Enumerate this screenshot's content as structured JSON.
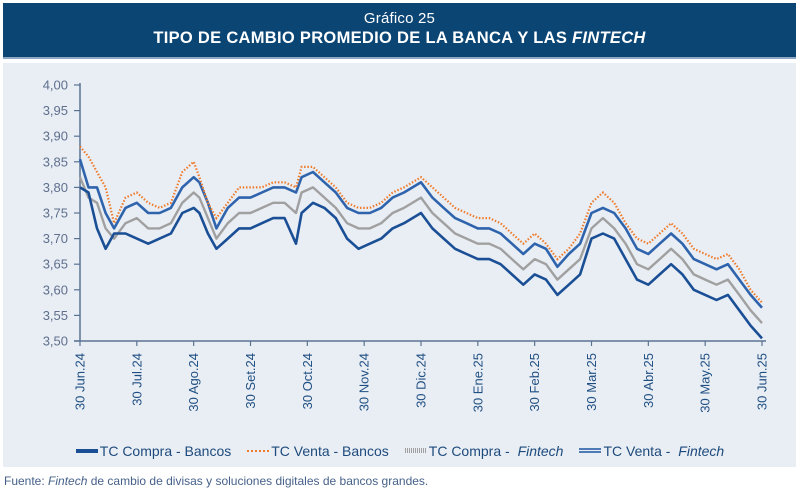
{
  "header": {
    "subtitle": "Gráfico 25",
    "title_main": "TIPO DE CAMBIO PROMEDIO DE LA BANCA Y LAS ",
    "title_italic": "FINTECH"
  },
  "footer": {
    "prefix": "Fuente: ",
    "italic": "Fintech",
    "rest": " de cambio de divisas y soluciones digitales de bancos grandes."
  },
  "legend": [
    {
      "label": "TC Compra - Bancos",
      "italic": ""
    },
    {
      "label": "TC Venta - Bancos",
      "italic": ""
    },
    {
      "label": "TC Compra - ",
      "italic": "Fintech"
    },
    {
      "label": "TC Venta - ",
      "italic": "Fintech"
    }
  ],
  "colors": {
    "header_bg": "#0b4574",
    "panel_bg": "#e9eef5",
    "compra_bancos": "#1b4f95",
    "venta_bancos": "#ef7b2a",
    "compra_fintech": "#a0a0a0",
    "venta_fintech": "#2f64ad",
    "axis": "#5a7394"
  },
  "chart_data": {
    "type": "line",
    "title": "TIPO DE CAMBIO PROMEDIO DE LA BANCA Y LAS FINTECH",
    "xlabel": "",
    "ylabel": "",
    "ylim": [
      3.5,
      4.0
    ],
    "yticks": [
      "3,50",
      "3,55",
      "3,60",
      "3,65",
      "3,70",
      "3,75",
      "3,80",
      "3,85",
      "3,90",
      "3,95",
      "4,00"
    ],
    "ytick_values": [
      3.5,
      3.55,
      3.6,
      3.65,
      3.7,
      3.75,
      3.8,
      3.85,
      3.9,
      3.95,
      4.0
    ],
    "xticks": [
      "30 Jun.24",
      "30 Jul.24",
      "30 Ago.24",
      "30 Set.24",
      "30 Oct.24",
      "30 Nov.24",
      "30 Dic.24",
      "30 Ene.25",
      "30 Feb.25",
      "30 Mar.25",
      "30 Abr.25",
      "30 May.25",
      "30 Jun.25"
    ],
    "x_range_months": [
      0,
      12
    ],
    "grid": false,
    "legend_position": "bottom",
    "x": [
      0,
      0.15,
      0.3,
      0.45,
      0.6,
      0.8,
      1.0,
      1.2,
      1.4,
      1.6,
      1.8,
      2.0,
      2.1,
      2.25,
      2.4,
      2.6,
      2.8,
      3.0,
      3.2,
      3.4,
      3.6,
      3.8,
      3.9,
      4.1,
      4.3,
      4.5,
      4.7,
      4.9,
      5.1,
      5.3,
      5.5,
      5.7,
      6.0,
      6.2,
      6.4,
      6.6,
      6.8,
      7.0,
      7.2,
      7.4,
      7.6,
      7.8,
      8.0,
      8.2,
      8.4,
      8.6,
      8.8,
      9.0,
      9.2,
      9.4,
      9.6,
      9.8,
      10.0,
      10.2,
      10.4,
      10.6,
      10.8,
      11.0,
      11.2,
      11.4,
      11.6,
      11.8,
      12.0
    ],
    "series": [
      {
        "name": "TC Compra - Bancos",
        "values": [
          3.8,
          3.79,
          3.72,
          3.68,
          3.71,
          3.71,
          3.7,
          3.69,
          3.7,
          3.71,
          3.75,
          3.76,
          3.75,
          3.71,
          3.68,
          3.7,
          3.72,
          3.72,
          3.73,
          3.74,
          3.74,
          3.69,
          3.75,
          3.77,
          3.76,
          3.74,
          3.7,
          3.68,
          3.69,
          3.7,
          3.72,
          3.73,
          3.75,
          3.72,
          3.7,
          3.68,
          3.67,
          3.66,
          3.66,
          3.65,
          3.63,
          3.61,
          3.63,
          3.62,
          3.59,
          3.61,
          3.63,
          3.7,
          3.71,
          3.7,
          3.66,
          3.62,
          3.61,
          3.63,
          3.65,
          3.63,
          3.6,
          3.59,
          3.58,
          3.59,
          3.56,
          3.53,
          3.505
        ]
      },
      {
        "name": "TC Venta - Bancos",
        "values": [
          3.88,
          3.86,
          3.83,
          3.8,
          3.73,
          3.78,
          3.79,
          3.77,
          3.76,
          3.77,
          3.83,
          3.85,
          3.82,
          3.77,
          3.74,
          3.77,
          3.8,
          3.8,
          3.8,
          3.81,
          3.81,
          3.8,
          3.84,
          3.84,
          3.82,
          3.8,
          3.77,
          3.76,
          3.76,
          3.77,
          3.79,
          3.8,
          3.82,
          3.8,
          3.78,
          3.76,
          3.75,
          3.74,
          3.74,
          3.73,
          3.71,
          3.69,
          3.71,
          3.69,
          3.66,
          3.68,
          3.71,
          3.77,
          3.79,
          3.77,
          3.73,
          3.7,
          3.69,
          3.71,
          3.73,
          3.71,
          3.68,
          3.67,
          3.66,
          3.67,
          3.64,
          3.6,
          3.575
        ]
      },
      {
        "name": "TC Compra - Fintech",
        "values": [
          3.82,
          3.78,
          3.77,
          3.72,
          3.7,
          3.73,
          3.74,
          3.72,
          3.72,
          3.73,
          3.77,
          3.79,
          3.78,
          3.74,
          3.7,
          3.73,
          3.75,
          3.75,
          3.76,
          3.77,
          3.77,
          3.75,
          3.79,
          3.8,
          3.78,
          3.76,
          3.73,
          3.72,
          3.72,
          3.73,
          3.75,
          3.76,
          3.78,
          3.75,
          3.73,
          3.71,
          3.7,
          3.69,
          3.69,
          3.68,
          3.66,
          3.64,
          3.66,
          3.65,
          3.62,
          3.64,
          3.66,
          3.72,
          3.74,
          3.72,
          3.69,
          3.65,
          3.64,
          3.66,
          3.68,
          3.66,
          3.63,
          3.62,
          3.61,
          3.62,
          3.59,
          3.56,
          3.535
        ]
      },
      {
        "name": "TC Venta - Fintech",
        "values": [
          3.855,
          3.8,
          3.8,
          3.75,
          3.72,
          3.76,
          3.77,
          3.75,
          3.75,
          3.76,
          3.8,
          3.82,
          3.81,
          3.77,
          3.72,
          3.76,
          3.78,
          3.78,
          3.79,
          3.8,
          3.8,
          3.79,
          3.82,
          3.83,
          3.81,
          3.79,
          3.76,
          3.75,
          3.75,
          3.76,
          3.78,
          3.79,
          3.81,
          3.78,
          3.76,
          3.74,
          3.73,
          3.72,
          3.72,
          3.71,
          3.69,
          3.67,
          3.69,
          3.68,
          3.645,
          3.67,
          3.69,
          3.75,
          3.76,
          3.75,
          3.72,
          3.68,
          3.67,
          3.69,
          3.71,
          3.69,
          3.66,
          3.65,
          3.64,
          3.65,
          3.62,
          3.59,
          3.565
        ]
      }
    ]
  }
}
